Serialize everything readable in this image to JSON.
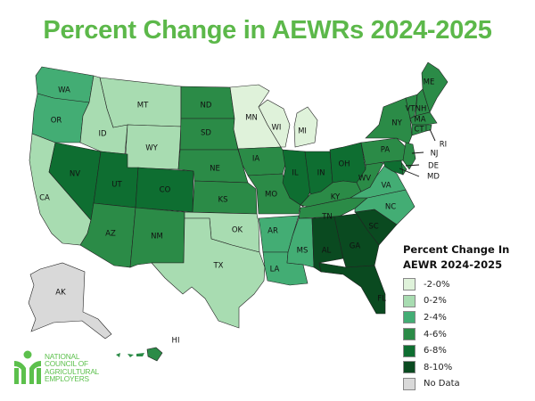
{
  "title": "Percent Change in AEWRs 2024-2025",
  "legend": {
    "title": "Percent Change In AEWR 2024-2025",
    "items": [
      {
        "key": "n2_0",
        "label": "-2-0%",
        "color": "#dff2da"
      },
      {
        "key": "p0_2",
        "label": "0-2%",
        "color": "#a8dcb1"
      },
      {
        "key": "p2_4",
        "label": "2-4%",
        "color": "#43ad74"
      },
      {
        "key": "p4_6",
        "label": "4-6%",
        "color": "#2b8b47"
      },
      {
        "key": "p6_8",
        "label": "6-8%",
        "color": "#0e6e31"
      },
      {
        "key": "p8_10",
        "label": "8-10%",
        "color": "#0a4a20"
      },
      {
        "key": "nodata",
        "label": "No Data",
        "color": "#d9d9d9"
      }
    ]
  },
  "states": [
    {
      "abbr": "WA",
      "range": "p2_4"
    },
    {
      "abbr": "OR",
      "range": "p2_4"
    },
    {
      "abbr": "CA",
      "range": "p0_2"
    },
    {
      "abbr": "ID",
      "range": "p0_2"
    },
    {
      "abbr": "MT",
      "range": "p0_2"
    },
    {
      "abbr": "WY",
      "range": "p0_2"
    },
    {
      "abbr": "NV",
      "range": "p6_8"
    },
    {
      "abbr": "UT",
      "range": "p6_8"
    },
    {
      "abbr": "CO",
      "range": "p6_8"
    },
    {
      "abbr": "AZ",
      "range": "p4_6"
    },
    {
      "abbr": "NM",
      "range": "p4_6"
    },
    {
      "abbr": "ND",
      "range": "p4_6"
    },
    {
      "abbr": "SD",
      "range": "p4_6"
    },
    {
      "abbr": "NE",
      "range": "p4_6"
    },
    {
      "abbr": "KS",
      "range": "p4_6"
    },
    {
      "abbr": "OK",
      "range": "p0_2"
    },
    {
      "abbr": "TX",
      "range": "p0_2"
    },
    {
      "abbr": "MN",
      "range": "n2_0"
    },
    {
      "abbr": "WI",
      "range": "n2_0"
    },
    {
      "abbr": "MI",
      "range": "n2_0"
    },
    {
      "abbr": "IA",
      "range": "p4_6"
    },
    {
      "abbr": "MO",
      "range": "p4_6"
    },
    {
      "abbr": "AR",
      "range": "p2_4"
    },
    {
      "abbr": "LA",
      "range": "p2_4"
    },
    {
      "abbr": "MS",
      "range": "p2_4"
    },
    {
      "abbr": "IL",
      "range": "p6_8"
    },
    {
      "abbr": "IN",
      "range": "p6_8"
    },
    {
      "abbr": "OH",
      "range": "p6_8"
    },
    {
      "abbr": "KY",
      "range": "p4_6"
    },
    {
      "abbr": "TN",
      "range": "p4_6"
    },
    {
      "abbr": "AL",
      "range": "p8_10"
    },
    {
      "abbr": "GA",
      "range": "p8_10"
    },
    {
      "abbr": "FL",
      "range": "p8_10"
    },
    {
      "abbr": "SC",
      "range": "p8_10"
    },
    {
      "abbr": "NC",
      "range": "p2_4"
    },
    {
      "abbr": "VA",
      "range": "p2_4"
    },
    {
      "abbr": "WV",
      "range": "p4_6"
    },
    {
      "abbr": "PA",
      "range": "p4_6"
    },
    {
      "abbr": "NY",
      "range": "p4_6"
    },
    {
      "abbr": "VT",
      "range": "p4_6"
    },
    {
      "abbr": "NH",
      "range": "p4_6"
    },
    {
      "abbr": "ME",
      "range": "p4_6"
    },
    {
      "abbr": "MA",
      "range": "p4_6"
    },
    {
      "abbr": "CT",
      "range": "p4_6"
    },
    {
      "abbr": "RI",
      "range": "p4_6"
    },
    {
      "abbr": "NJ",
      "range": "p4_6"
    },
    {
      "abbr": "DE",
      "range": "p4_6"
    },
    {
      "abbr": "MD",
      "range": "p6_8"
    },
    {
      "abbr": "AK",
      "range": "nodata"
    },
    {
      "abbr": "HI",
      "range": "p4_6"
    }
  ],
  "logo": {
    "lines": [
      "NATIONAL",
      "COUNCIL OF",
      "AGRICULTURAL",
      "EMPLOYERS"
    ],
    "color": "#5cc04c"
  }
}
